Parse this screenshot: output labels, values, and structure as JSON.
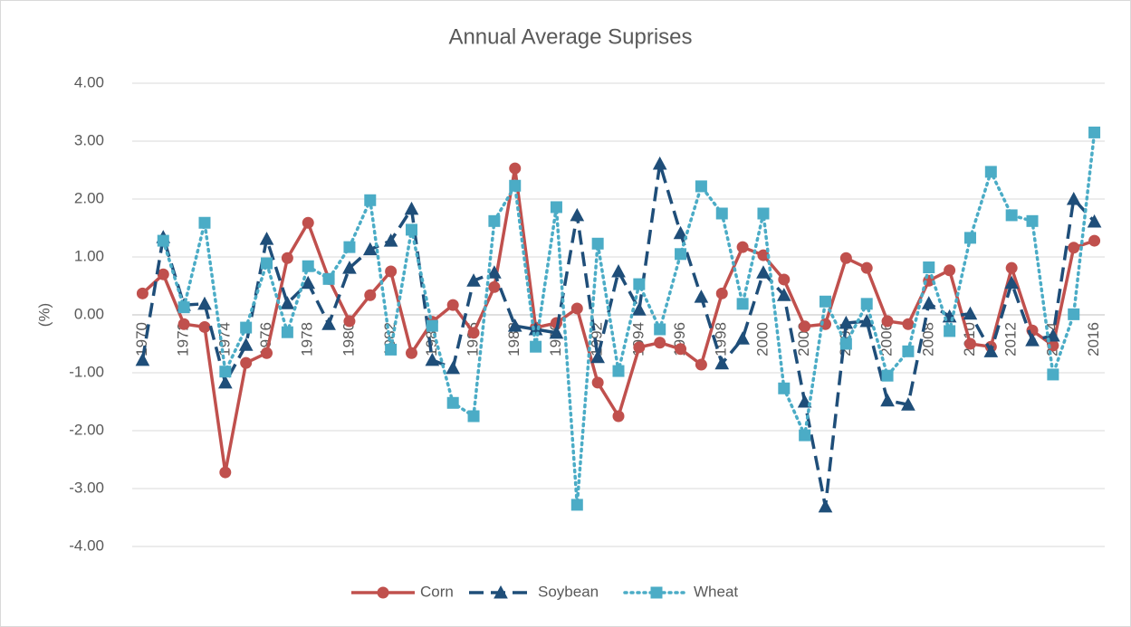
{
  "chart_data": {
    "type": "line",
    "title": "Annual Average Suprises",
    "y_label": "(%)",
    "categories": [
      "1970",
      null,
      "1972",
      null,
      "1974",
      null,
      "1976",
      null,
      "1978",
      null,
      "1980",
      null,
      "1982",
      null,
      "1984",
      null,
      "1986",
      null,
      "1988",
      null,
      "1990",
      null,
      "1992",
      null,
      "1994",
      null,
      "1996",
      null,
      "1998",
      null,
      "2000",
      null,
      "2002",
      null,
      "2004",
      null,
      "2006",
      null,
      "2008",
      null,
      "2010",
      null,
      "2012",
      null,
      "2014",
      null,
      "2016"
    ],
    "series": [
      {
        "name": "Corn",
        "color": "#c0504d",
        "dash": "solid",
        "marker": "circle",
        "values": [
          0.37,
          0.7,
          -0.16,
          -0.21,
          -2.72,
          -0.83,
          -0.66,
          0.98,
          1.59,
          0.62,
          -0.11,
          0.34,
          0.75,
          -0.66,
          -0.12,
          0.17,
          -0.31,
          0.48,
          2.53,
          -0.22,
          -0.14,
          0.11,
          -1.17,
          -1.75,
          -0.56,
          -0.48,
          -0.59,
          -0.86,
          0.37,
          1.17,
          1.03,
          0.61,
          -0.2,
          -0.16,
          0.98,
          0.81,
          -0.11,
          -0.16,
          0.59,
          0.77,
          -0.5,
          -0.55,
          0.81,
          -0.27,
          -0.53,
          1.16,
          1.28
        ]
      },
      {
        "name": "Soybean",
        "color": "#1f4e79",
        "dash": "dash",
        "marker": "triangle",
        "values": [
          -0.78,
          1.34,
          0.17,
          0.19,
          -1.17,
          -0.52,
          1.31,
          0.2,
          0.55,
          -0.16,
          0.81,
          1.13,
          1.28,
          1.83,
          -0.78,
          -0.92,
          0.59,
          0.73,
          -0.19,
          -0.25,
          -0.31,
          1.72,
          -0.73,
          0.75,
          0.09,
          2.61,
          1.41,
          0.31,
          -0.84,
          -0.41,
          0.73,
          0.34,
          -1.5,
          -3.31,
          -0.14,
          -0.11,
          -1.48,
          -1.55,
          0.2,
          -0.03,
          0.02,
          -0.63,
          0.55,
          -0.44,
          -0.36,
          2.0,
          1.61
        ]
      },
      {
        "name": "Wheat",
        "color": "#4bacc6",
        "dash": "dot",
        "marker": "square",
        "values": [
          null,
          1.28,
          0.13,
          1.59,
          -0.98,
          -0.22,
          0.89,
          -0.3,
          0.84,
          0.62,
          1.17,
          1.98,
          -0.6,
          1.47,
          -0.19,
          -1.52,
          -1.75,
          1.62,
          2.23,
          -0.55,
          1.86,
          -3.28,
          1.23,
          -0.97,
          0.53,
          -0.25,
          1.05,
          2.22,
          1.75,
          0.19,
          1.75,
          -1.27,
          -2.08,
          0.23,
          -0.5,
          0.19,
          -1.05,
          -0.63,
          0.82,
          -0.28,
          1.33,
          2.47,
          1.72,
          1.62,
          -1.03,
          0.01,
          3.15
        ]
      }
    ],
    "ylim": [
      -4,
      4
    ],
    "yticks": [
      {
        "value": -4,
        "label": "-4.00"
      },
      {
        "value": -3,
        "label": "-3.00"
      },
      {
        "value": -2,
        "label": "-2.00"
      },
      {
        "value": -1,
        "label": "-1.00"
      },
      {
        "value": 0,
        "label": "0.00"
      },
      {
        "value": 1,
        "label": "1.00"
      },
      {
        "value": 2,
        "label": "2.00"
      },
      {
        "value": 3,
        "label": "3.00"
      },
      {
        "value": 4,
        "label": "4.00"
      }
    ],
    "grid": true,
    "legend": "bottom"
  }
}
